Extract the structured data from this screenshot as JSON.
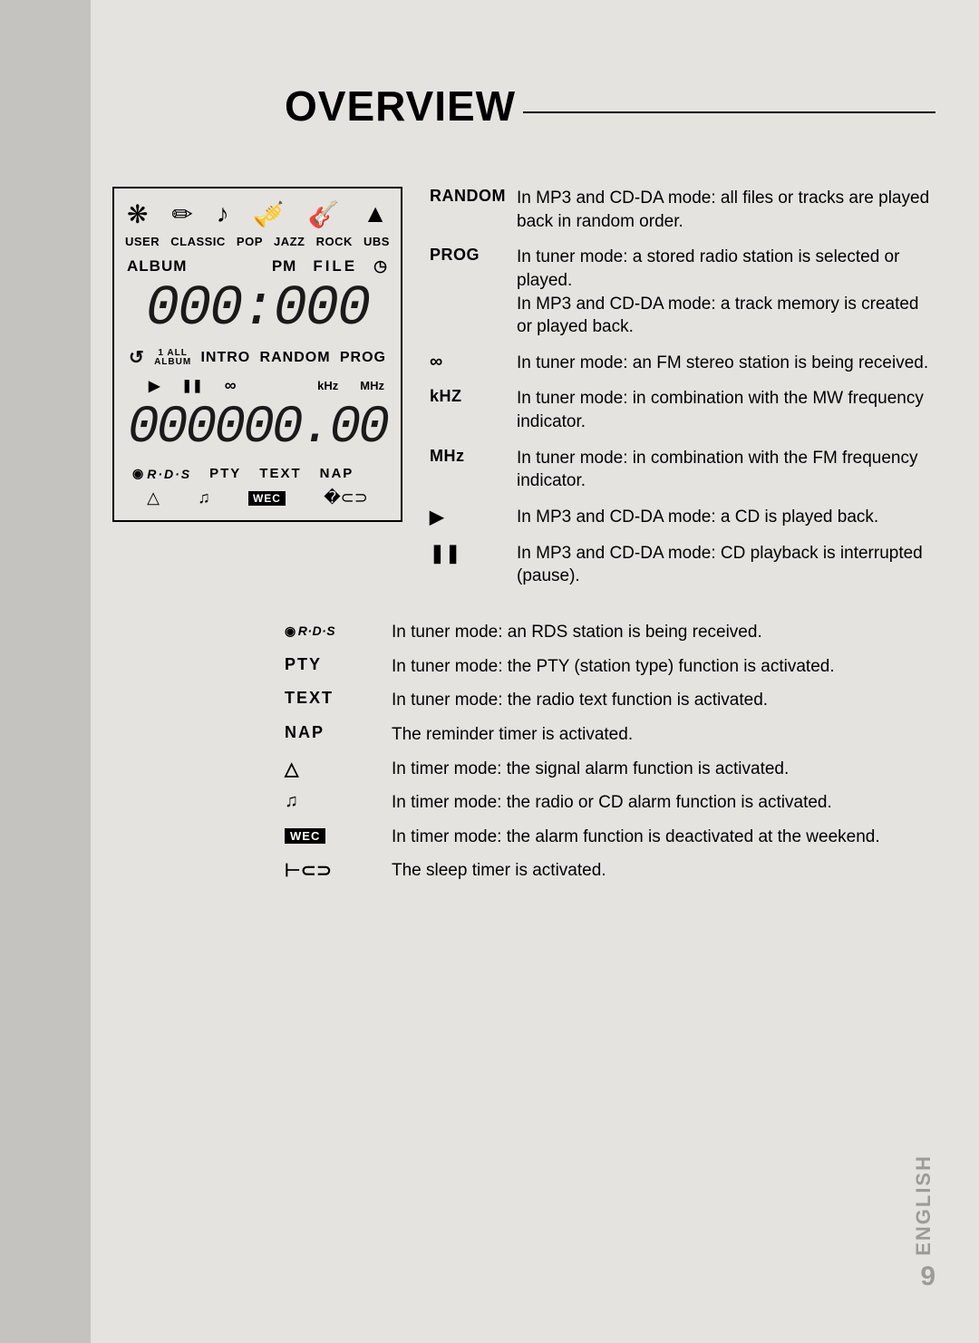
{
  "page": {
    "title": "OVERVIEW",
    "language": "ENGLISH",
    "number": "9"
  },
  "lcd": {
    "icon_row": [
      "❋",
      "✏",
      "♪",
      "🎺",
      "🎸",
      "▲"
    ],
    "eq_labels": [
      "USER",
      "CLASSIC",
      "POP",
      "JAZZ",
      "ROCK",
      "UBS"
    ],
    "album": "ALBUM",
    "pm": "PM",
    "file": "FILE",
    "clock_icon": "◷",
    "seg_time": "000:000",
    "repeat_icon": "↺",
    "one": "1",
    "all": "ALL",
    "album2": "ALBUM",
    "intro": "INTRO",
    "random": "RANDOM",
    "prog": "PROG",
    "play": "▶",
    "pause": "❚❚",
    "stereo": "∞",
    "khz": "kHz",
    "mhz": "MHz",
    "seg_freq": "000000.00",
    "rds": "R·D·S",
    "pty": "PTY",
    "text": "TEXT",
    "nap": "NAP",
    "bell": "△",
    "note": "♫",
    "wec": "WEC",
    "sleep": "�⊂⊃"
  },
  "defs_right": [
    {
      "term": "RANDOM",
      "term_type": "text",
      "desc": "In MP3 and CD-DA mode: all files or tracks are played back in random order."
    },
    {
      "term": "PROG",
      "term_type": "text",
      "desc": "In tuner mode: a stored radio station is selected or played.\nIn MP3 and CD-DA mode: a track memory is created or played back."
    },
    {
      "term": "∞",
      "term_type": "icon",
      "desc": "In tuner mode: an FM stereo station is being received."
    },
    {
      "term": "kHZ",
      "term_type": "text",
      "desc": "In tuner mode: in combination with the MW frequency indicator."
    },
    {
      "term": "MHz",
      "term_type": "text",
      "desc": "In tuner mode: in combination with the FM frequency indicator."
    },
    {
      "term": "▶",
      "term_type": "icon",
      "desc": "In MP3 and CD-DA mode: a CD is played back."
    },
    {
      "term": "❚❚",
      "term_type": "icon",
      "desc": "In MP3 and CD-DA mode: CD playback is interrupted (pause)."
    }
  ],
  "defs_lower": [
    {
      "term": "R·D·S",
      "term_type": "rds",
      "desc": "In tuner mode: an RDS station is being received."
    },
    {
      "term": "PTY",
      "term_type": "bold",
      "desc": "In tuner mode: the PTY (station type) function is activated."
    },
    {
      "term": "TEXT",
      "term_type": "bold",
      "desc": "In tuner mode: the radio text function is activated."
    },
    {
      "term": "NAP",
      "term_type": "bold",
      "desc": "The reminder timer is activated."
    },
    {
      "term": "△",
      "term_type": "icon",
      "desc": "In timer mode: the signal alarm function is activated."
    },
    {
      "term": "♫",
      "term_type": "icon",
      "desc": "In timer mode: the radio or CD alarm function is activated."
    },
    {
      "term": "WEC",
      "term_type": "wec",
      "desc": "In timer mode: the alarm function is deactivated at the weekend."
    },
    {
      "term": "⊢⊂⊃",
      "term_type": "icon",
      "desc": "The sleep timer is activated."
    }
  ]
}
